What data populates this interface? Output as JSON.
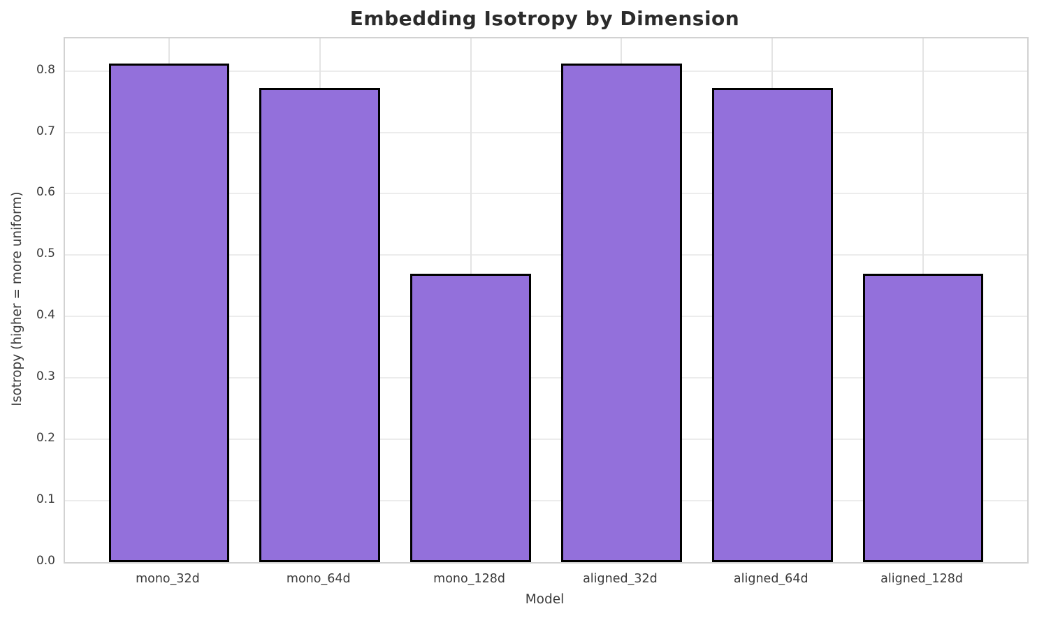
{
  "chart_data": {
    "type": "bar",
    "title": "Embedding Isotropy by Dimension",
    "xlabel": "Model",
    "ylabel": "Isotropy (higher = more uniform)",
    "categories": [
      "mono_32d",
      "mono_64d",
      "mono_128d",
      "aligned_32d",
      "aligned_64d",
      "aligned_128d"
    ],
    "values": [
      0.812,
      0.772,
      0.47,
      0.812,
      0.772,
      0.47
    ],
    "ylim": [
      0,
      0.853
    ],
    "yticks": [
      0.0,
      0.1,
      0.2,
      0.3,
      0.4,
      0.5,
      0.6,
      0.7,
      0.8
    ],
    "ytick_labels": [
      "0.0",
      "0.1",
      "0.2",
      "0.3",
      "0.4",
      "0.5",
      "0.6",
      "0.7",
      "0.8"
    ],
    "grid": true,
    "legend": "none",
    "bar_color": "#9370DB",
    "bar_edge_color": "#000000",
    "grid_color": "#ececec",
    "spine_color": "#d2d2d2",
    "background_color": "#ffffff",
    "title_color": "#2b2b2b",
    "tick_color": "#3a3a3a"
  }
}
